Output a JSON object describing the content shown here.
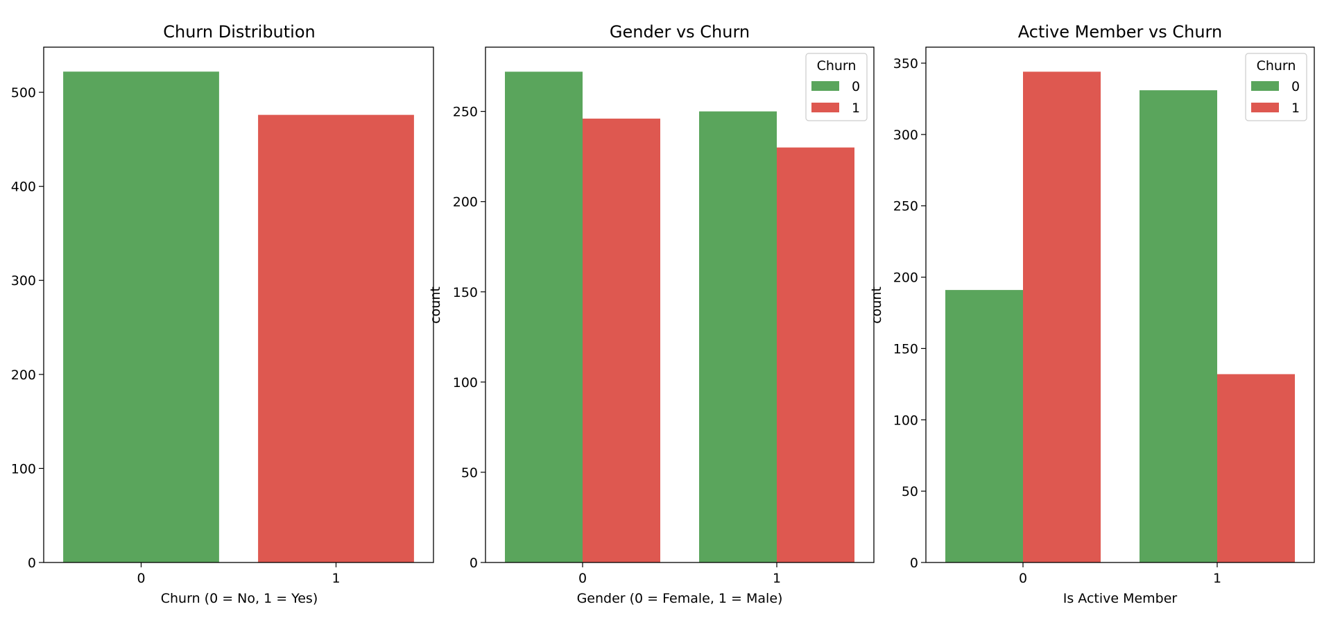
{
  "colors": {
    "churn_0": "#5aa55c",
    "churn_1": "#de5850"
  },
  "chart_data": [
    {
      "type": "bar",
      "title": "Churn Distribution",
      "xlabel": "Churn (0 = No, 1 = Yes)",
      "ylabel": "",
      "categories": [
        "0",
        "1"
      ],
      "values": [
        522,
        476
      ],
      "bar_colors": [
        "#5aa55c",
        "#de5850"
      ],
      "ylim": [
        0,
        548
      ],
      "yticks": [
        0,
        100,
        200,
        300,
        400,
        500
      ],
      "legend": null,
      "grid": false
    },
    {
      "type": "bar",
      "title": "Gender vs Churn",
      "xlabel": "Gender (0 = Female, 1 = Male)",
      "ylabel": "count",
      "categories": [
        "0",
        "1"
      ],
      "series": [
        {
          "name": "0",
          "color": "#5aa55c",
          "values": [
            272,
            250
          ]
        },
        {
          "name": "1",
          "color": "#de5850",
          "values": [
            246,
            230
          ]
        }
      ],
      "ylim": [
        0,
        285.6
      ],
      "yticks": [
        0,
        50,
        100,
        150,
        200,
        250
      ],
      "legend": {
        "title": "Churn",
        "position": "top-right"
      },
      "grid": false
    },
    {
      "type": "bar",
      "title": "Active Member vs Churn",
      "xlabel": "Is Active Member",
      "ylabel": "count",
      "categories": [
        "0",
        "1"
      ],
      "series": [
        {
          "name": "0",
          "color": "#5aa55c",
          "values": [
            191,
            331
          ]
        },
        {
          "name": "1",
          "color": "#de5850",
          "values": [
            344,
            132
          ]
        }
      ],
      "ylim": [
        0,
        361.2
      ],
      "yticks": [
        0,
        50,
        100,
        150,
        200,
        250,
        300,
        350
      ],
      "legend": {
        "title": "Churn",
        "position": "top-right"
      },
      "grid": false
    }
  ]
}
